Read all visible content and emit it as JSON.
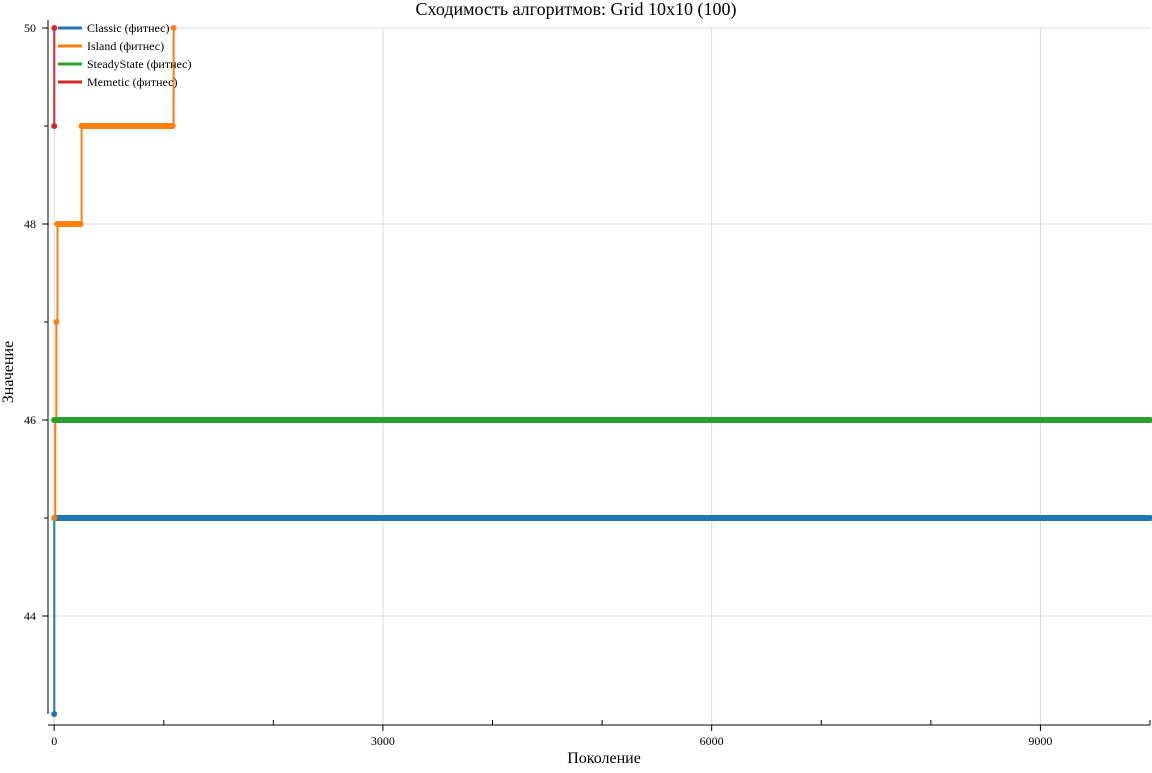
{
  "chart_data": {
    "type": "line",
    "title": "Сходимость алгоритмов: Grid 10x10 (100)",
    "xlabel": "Поколение",
    "ylabel": "Значение",
    "xlim": [
      -20,
      10000
    ],
    "ylim": [
      43,
      50
    ],
    "x_ticks": [
      0,
      3000,
      6000,
      9000
    ],
    "x_minor_ticks": [
      1000,
      2000,
      4000,
      5000,
      7000,
      8000,
      10000
    ],
    "y_ticks": [
      44,
      46,
      48,
      50
    ],
    "y_minor_ticks": [
      45,
      47,
      49
    ],
    "grid": true,
    "legend_position": "top-left",
    "x_end": 10000,
    "series": [
      {
        "name": "Classic (фитнес)",
        "color": "#1f77b4",
        "points": [
          [
            0,
            43
          ],
          [
            1,
            45
          ],
          [
            10000,
            45
          ]
        ]
      },
      {
        "name": "Island (фитнес)",
        "color": "#ff7f0e",
        "points": [
          [
            0,
            45
          ],
          [
            10,
            46
          ],
          [
            20,
            47
          ],
          [
            30,
            48
          ],
          [
            240,
            48
          ],
          [
            250,
            49
          ],
          [
            1080,
            49
          ],
          [
            1090,
            50
          ]
        ]
      },
      {
        "name": "SteadyState (фитнес)",
        "color": "#2ca02c",
        "points": [
          [
            0,
            46
          ],
          [
            10000,
            46
          ]
        ]
      },
      {
        "name": "Memetic (фитнес)",
        "color": "#d62728",
        "points": [
          [
            0,
            49
          ],
          [
            1,
            50
          ]
        ]
      }
    ]
  }
}
